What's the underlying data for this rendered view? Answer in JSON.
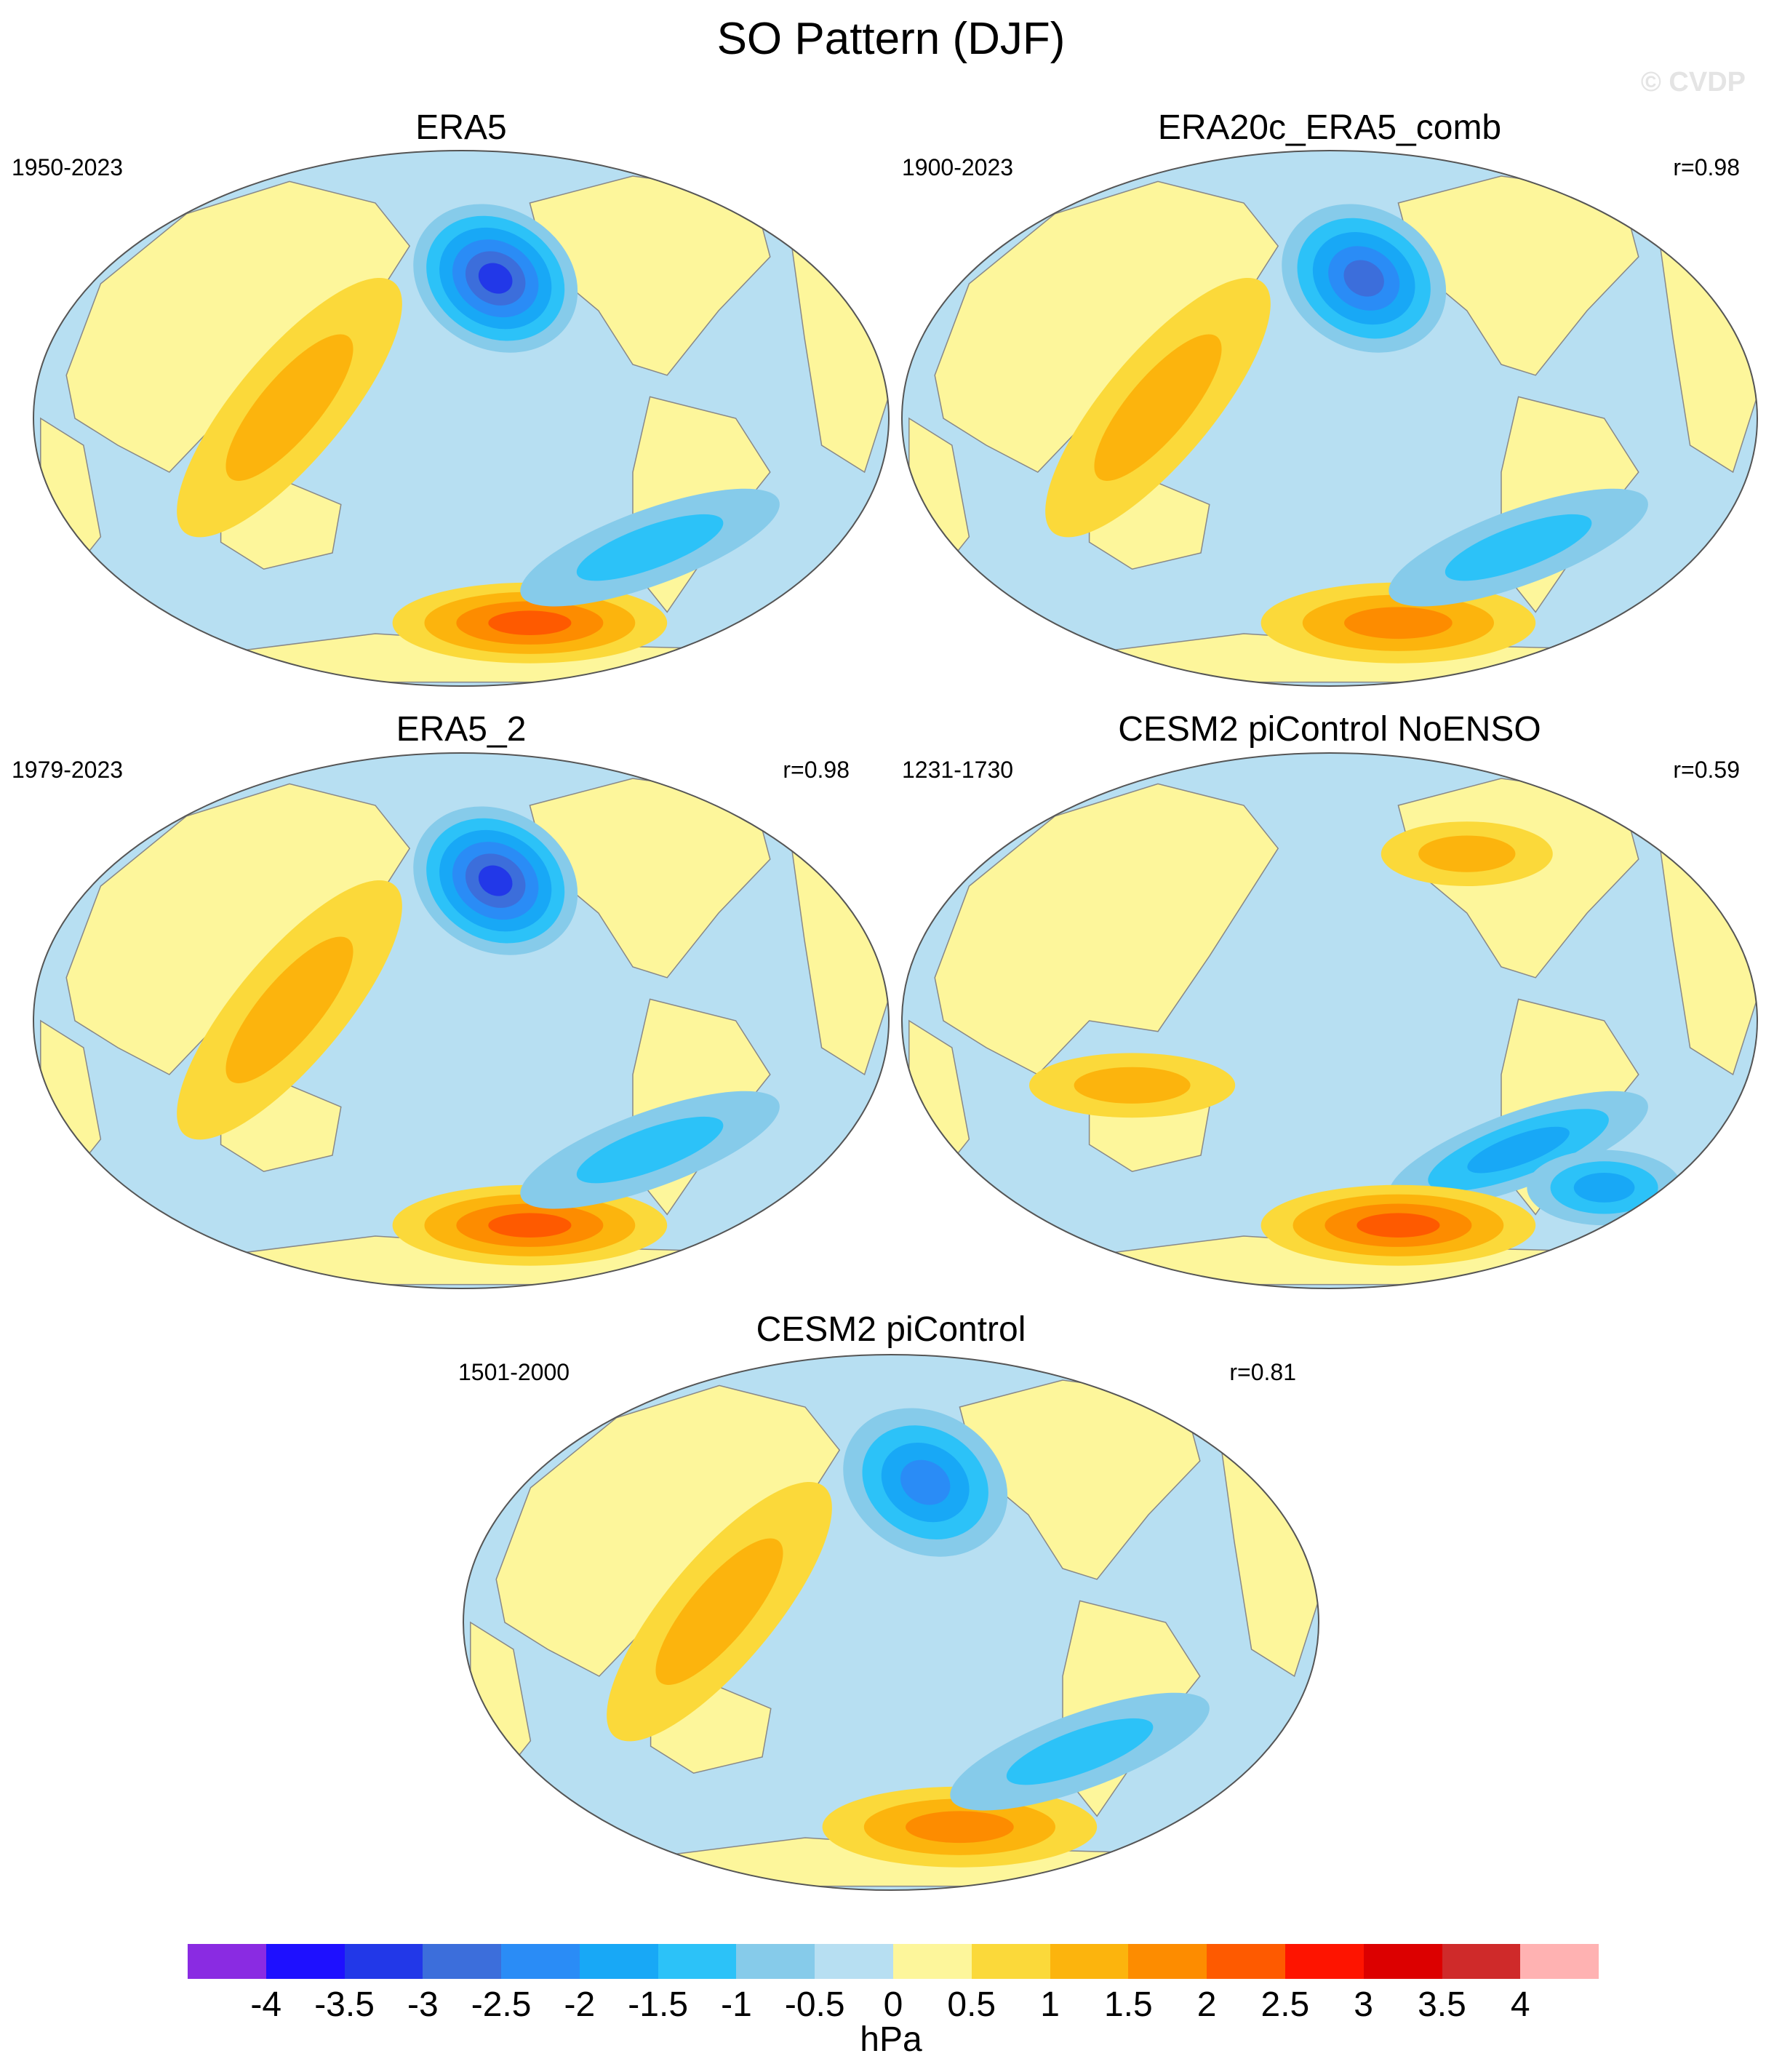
{
  "title": "SO Pattern (DJF)",
  "watermark": "© CVDP",
  "colors": {
    "ocean": "#b7dff2",
    "land": "#fdf69b",
    "coast": "#888888",
    "border": "#555555"
  },
  "panels": [
    {
      "id": "era5",
      "title": "ERA5",
      "period": "1950-2023",
      "correlation": "",
      "features": [
        {
          "region": "north-pacific",
          "shape": "low",
          "levels": [
            -0.5,
            -1,
            -1.5,
            -2,
            -2.5,
            -3
          ]
        },
        {
          "region": "asia-australia",
          "shape": "high",
          "levels": [
            0.5,
            1
          ]
        },
        {
          "region": "southern-ocean",
          "shape": "high",
          "levels": [
            0.5,
            1,
            1.5,
            2
          ]
        },
        {
          "region": "south-pacific",
          "shape": "low",
          "levels": [
            -0.5,
            -1
          ]
        }
      ]
    },
    {
      "id": "era20c",
      "title": "ERA20c_ERA5_comb",
      "period": "1900-2023",
      "correlation": "r=0.98",
      "features": [
        {
          "region": "north-pacific",
          "shape": "low",
          "levels": [
            -0.5,
            -1,
            -1.5,
            -2,
            -2.5
          ]
        },
        {
          "region": "asia-australia",
          "shape": "high",
          "levels": [
            0.5,
            1
          ]
        },
        {
          "region": "southern-ocean",
          "shape": "high",
          "levels": [
            0.5,
            1,
            1.5
          ]
        },
        {
          "region": "south-pacific",
          "shape": "low",
          "levels": [
            -0.5,
            -1
          ]
        }
      ]
    },
    {
      "id": "era5-2",
      "title": "ERA5_2",
      "period": "1979-2023",
      "correlation": "r=0.98",
      "features": [
        {
          "region": "north-pacific",
          "shape": "low",
          "levels": [
            -0.5,
            -1,
            -1.5,
            -2,
            -2.5,
            -3
          ]
        },
        {
          "region": "asia-australia",
          "shape": "high",
          "levels": [
            0.5,
            1
          ]
        },
        {
          "region": "southern-ocean",
          "shape": "high",
          "levels": [
            0.5,
            1,
            1.5,
            2
          ]
        },
        {
          "region": "south-pacific",
          "shape": "low",
          "levels": [
            -0.5,
            -1
          ]
        }
      ]
    },
    {
      "id": "cesm2-noenso",
      "title": "CESM2 piControl NoENSO",
      "period": "1231-1730",
      "correlation": "r=0.59",
      "features": [
        {
          "region": "south-pacific",
          "shape": "low",
          "levels": [
            -0.5,
            -1,
            -1.5
          ]
        },
        {
          "region": "south-atlantic",
          "shape": "low",
          "levels": [
            -0.5,
            -1,
            -1.5
          ]
        },
        {
          "region": "southern-ocean",
          "shape": "high",
          "levels": [
            0.5,
            1,
            1.5,
            2
          ]
        },
        {
          "region": "australia",
          "shape": "high",
          "levels": [
            0.5,
            1
          ]
        },
        {
          "region": "north-america",
          "shape": "high",
          "levels": [
            0.5,
            1
          ]
        }
      ]
    },
    {
      "id": "cesm2",
      "title": "CESM2 piControl",
      "period": "1501-2000",
      "correlation": "r=0.81",
      "features": [
        {
          "region": "north-pacific",
          "shape": "low",
          "levels": [
            -0.5,
            -1,
            -1.5,
            -2
          ]
        },
        {
          "region": "asia-australia",
          "shape": "high",
          "levels": [
            0.5,
            1
          ]
        },
        {
          "region": "southern-ocean",
          "shape": "high",
          "levels": [
            0.5,
            1,
            1.5
          ]
        },
        {
          "region": "south-pacific",
          "shape": "low",
          "levels": [
            -0.5,
            -1
          ]
        }
      ]
    }
  ],
  "colorbar": {
    "unit": "hPa",
    "labels": [
      "-4",
      "-3.5",
      "-3",
      "-2.5",
      "-2",
      "-1.5",
      "-1",
      "-0.5",
      "0",
      "0.5",
      "1",
      "1.5",
      "2",
      "2.5",
      "3",
      "3.5",
      "4"
    ],
    "colors": [
      "#8a2be2",
      "#1e10ff",
      "#2238e8",
      "#3c6edb",
      "#2a8cf6",
      "#18a8f6",
      "#2cc2f8",
      "#86cbea",
      "#b7dff2",
      "#fdf69b",
      "#fbd93a",
      "#fcb40d",
      "#fd8c00",
      "#fe5a00",
      "#fe1400",
      "#dc0000",
      "#cf2a2a",
      "#ffb2b2"
    ]
  }
}
